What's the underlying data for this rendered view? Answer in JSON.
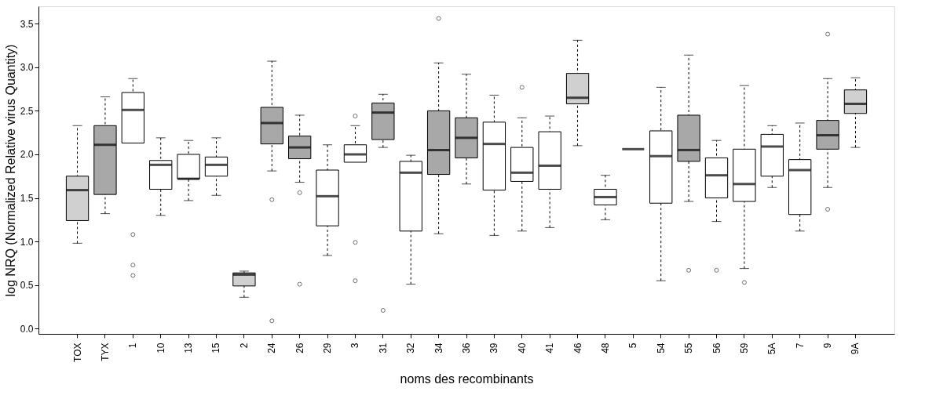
{
  "chart_data": {
    "type": "box",
    "xlabel": "noms des recombinants",
    "ylabel": "log NRQ (Normalized Relative virus Quantity)",
    "categories": [
      "TOX",
      "TYX",
      "1",
      "10",
      "13",
      "15",
      "2",
      "24",
      "26",
      "29",
      "3",
      "31",
      "32",
      "34",
      "36",
      "39",
      "40",
      "41",
      "46",
      "48",
      "5",
      "54",
      "55",
      "56",
      "59",
      "5A",
      "7",
      "9",
      "9A"
    ],
    "colors": [
      "#d0d0d0",
      "#a8a8a8",
      "#ffffff",
      "#ffffff",
      "#ffffff",
      "#ffffff",
      "#d0d0d0",
      "#a8a8a8",
      "#a8a8a8",
      "#ffffff",
      "#ffffff",
      "#a8a8a8",
      "#ffffff",
      "#a8a8a8",
      "#a8a8a8",
      "#ffffff",
      "#ffffff",
      "#ffffff",
      "#d0d0d0",
      "#ffffff",
      "#000000",
      "#ffffff",
      "#a8a8a8",
      "#ffffff",
      "#ffffff",
      "#ffffff",
      "#ffffff",
      "#a8a8a8",
      "#d0d0d0"
    ],
    "boxes": [
      {
        "low": 0.98,
        "q1": 1.24,
        "median": 1.59,
        "q3": 1.75,
        "high": 2.33
      },
      {
        "low": 1.32,
        "q1": 1.54,
        "median": 2.11,
        "q3": 2.33,
        "high": 2.66
      },
      {
        "low": 2.13,
        "q1": 2.13,
        "median": 2.51,
        "q3": 2.71,
        "high": 2.87,
        "outliers": [
          1.08,
          0.73,
          0.61
        ]
      },
      {
        "low": 1.3,
        "q1": 1.6,
        "median": 1.88,
        "q3": 1.93,
        "high": 2.19
      },
      {
        "low": 1.47,
        "q1": 1.72,
        "median": 1.72,
        "q3": 2.0,
        "high": 2.16
      },
      {
        "low": 1.53,
        "q1": 1.75,
        "median": 1.88,
        "q3": 1.97,
        "high": 2.19
      },
      {
        "low": 0.36,
        "q1": 0.49,
        "median": 0.62,
        "q3": 0.64,
        "high": 0.66
      },
      {
        "low": 1.81,
        "q1": 2.12,
        "median": 2.36,
        "q3": 2.54,
        "high": 3.07,
        "outliers": [
          1.48,
          0.09
        ]
      },
      {
        "low": 1.68,
        "q1": 1.95,
        "median": 2.08,
        "q3": 2.21,
        "high": 2.45,
        "outliers": [
          1.56,
          0.51
        ]
      },
      {
        "low": 0.84,
        "q1": 1.18,
        "median": 1.52,
        "q3": 1.82,
        "high": 2.11
      },
      {
        "low": 1.91,
        "q1": 1.91,
        "median": 2.0,
        "q3": 2.11,
        "high": 2.33,
        "outliers": [
          2.44,
          0.99,
          0.55
        ]
      },
      {
        "low": 2.08,
        "q1": 2.17,
        "median": 2.48,
        "q3": 2.59,
        "high": 2.69,
        "outliers": [
          0.21
        ]
      },
      {
        "low": 0.51,
        "q1": 1.12,
        "median": 1.79,
        "q3": 1.92,
        "high": 1.99
      },
      {
        "low": 1.09,
        "q1": 1.77,
        "median": 2.05,
        "q3": 2.5,
        "high": 3.05,
        "outliers": [
          3.56
        ]
      },
      {
        "low": 1.66,
        "q1": 1.96,
        "median": 2.19,
        "q3": 2.42,
        "high": 2.92
      },
      {
        "low": 1.07,
        "q1": 1.59,
        "median": 2.12,
        "q3": 2.37,
        "high": 2.68
      },
      {
        "low": 1.12,
        "q1": 1.69,
        "median": 1.79,
        "q3": 2.08,
        "high": 2.42,
        "outliers": [
          2.77
        ]
      },
      {
        "low": 1.16,
        "q1": 1.6,
        "median": 1.87,
        "q3": 2.26,
        "high": 2.44
      },
      {
        "low": 2.1,
        "q1": 2.58,
        "median": 2.65,
        "q3": 2.93,
        "high": 3.31
      },
      {
        "low": 1.25,
        "q1": 1.42,
        "median": 1.51,
        "q3": 1.6,
        "high": 1.76
      },
      {
        "low": 2.06,
        "q1": 2.06,
        "median": 2.06,
        "q3": 2.06,
        "high": 2.06
      },
      {
        "low": 0.55,
        "q1": 1.44,
        "median": 1.98,
        "q3": 2.27,
        "high": 2.77
      },
      {
        "low": 1.46,
        "q1": 1.92,
        "median": 2.05,
        "q3": 2.45,
        "high": 3.14,
        "outliers": [
          0.67
        ]
      },
      {
        "low": 1.23,
        "q1": 1.5,
        "median": 1.76,
        "q3": 1.96,
        "high": 2.16,
        "outliers": [
          0.67
        ]
      },
      {
        "low": 0.69,
        "q1": 1.46,
        "median": 1.66,
        "q3": 2.06,
        "high": 2.79,
        "outliers": [
          0.53
        ]
      },
      {
        "low": 1.62,
        "q1": 1.75,
        "median": 2.09,
        "q3": 2.23,
        "high": 2.33
      },
      {
        "low": 1.12,
        "q1": 1.31,
        "median": 1.82,
        "q3": 1.94,
        "high": 2.36
      },
      {
        "low": 1.62,
        "q1": 2.06,
        "median": 2.22,
        "q3": 2.39,
        "high": 2.87,
        "outliers": [
          3.38,
          1.37
        ]
      },
      {
        "low": 2.08,
        "q1": 2.47,
        "median": 2.58,
        "q3": 2.74,
        "high": 2.88
      }
    ],
    "ylim": [
      -0.06,
      3.7
    ],
    "yticks": [
      {
        "value": 0,
        "label": "0.0"
      },
      {
        "value": 0.5,
        "label": "0.5"
      },
      {
        "value": 1,
        "label": "1.0"
      },
      {
        "value": 1.5,
        "label": "1.5"
      },
      {
        "value": 2,
        "label": "2.0"
      },
      {
        "value": 2.5,
        "label": "2.5"
      },
      {
        "value": 3,
        "label": "3.0"
      },
      {
        "value": 3.5,
        "label": "3.5"
      }
    ],
    "grid": false,
    "legend": false
  }
}
